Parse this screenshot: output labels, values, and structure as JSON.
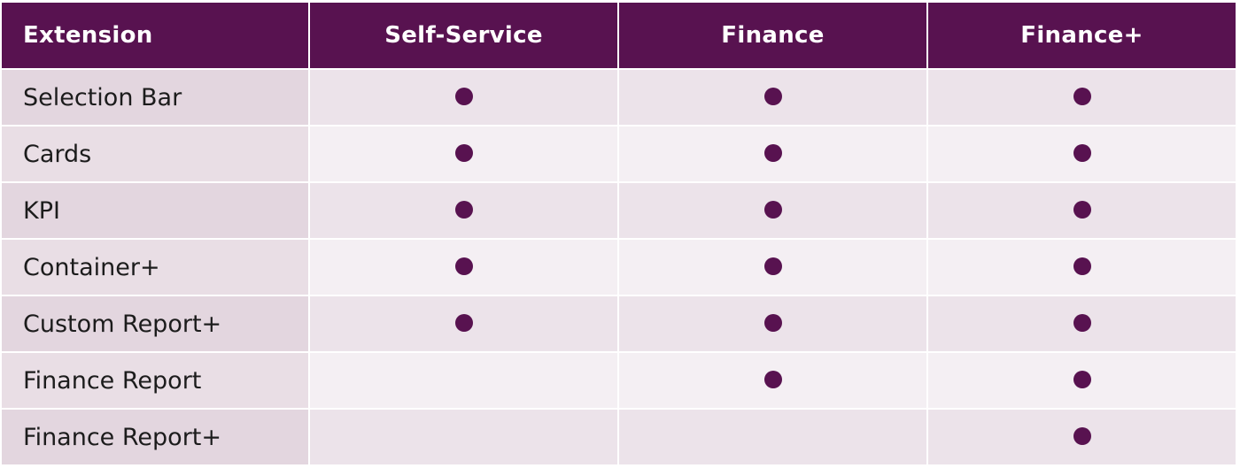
{
  "table": {
    "header": {
      "extension": "Extension",
      "plans": [
        "Self-Service",
        "Finance",
        "Finance+"
      ]
    },
    "rows": [
      {
        "label": "Selection Bar",
        "included": [
          true,
          true,
          true
        ]
      },
      {
        "label": "Cards",
        "included": [
          true,
          true,
          true
        ]
      },
      {
        "label": "KPI",
        "included": [
          true,
          true,
          true
        ]
      },
      {
        "label": "Container+",
        "included": [
          true,
          true,
          true
        ]
      },
      {
        "label": "Custom Report+",
        "included": [
          true,
          true,
          true
        ]
      },
      {
        "label": "Finance Report",
        "included": [
          false,
          true,
          true
        ]
      },
      {
        "label": "Finance Report+",
        "included": [
          false,
          false,
          true
        ]
      }
    ],
    "dot_icon": "filled-circle-icon",
    "colors": {
      "header_bg": "#581250",
      "header_text": "#ffffff",
      "dot": "#581250",
      "label_bg": "#e3d6df",
      "row_odd_bg": "#ece3ea",
      "row_even_bg": "#f4eff3"
    }
  }
}
